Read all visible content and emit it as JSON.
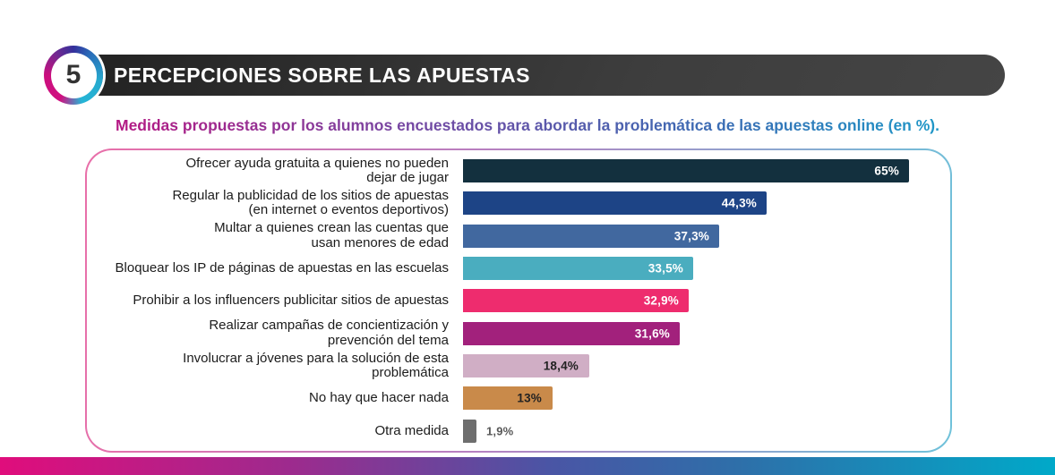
{
  "header": {
    "badge_number": "5",
    "title": "PERCEPCIONES SOBRE LAS APUESTAS",
    "bar_colors": [
      "#222222",
      "#454545"
    ],
    "badge_ring_colors": [
      "#34309b",
      "#27a9ce",
      "#d01080",
      "#6d2a92"
    ]
  },
  "chart_data": {
    "type": "bar",
    "orientation": "horizontal",
    "title": "Medidas propuestas por los alumnos encuestados para abordar la problemática de las apuestas online (en %).",
    "title_gradient_colors": [
      "#bb1380",
      "#7747a2",
      "#3a6cb4",
      "#16a3cd"
    ],
    "unit": "%",
    "xlim": [
      0,
      65
    ],
    "grid": false,
    "legend": false,
    "categories": [
      "Ofrecer ayuda gratuita a quienes no pueden dejar de jugar",
      "Regular la publicidad de los sitios de apuestas (en internet o eventos deportivos)",
      "Multar a quienes crean las cuentas que usan menores de edad",
      "Bloquear los IP de páginas de apuestas en las escuelas",
      "Prohibir a los influencers publicitar sitios de apuestas",
      "Realizar campañas de concientización y prevención del tema",
      "Involucrar a jóvenes para la solución de esta problemática",
      "No hay que hacer nada",
      "Otra medida"
    ],
    "label_lines": [
      [
        "Ofrecer ayuda gratuita a quienes no pueden",
        "dejar de jugar"
      ],
      [
        "Regular la publicidad de los sitios de apuestas",
        "(en internet o eventos deportivos)"
      ],
      [
        "Multar a quienes crean las cuentas que",
        "usan menores de edad"
      ],
      [
        "Bloquear los IP de páginas de apuestas en las escuelas"
      ],
      [
        "Prohibir a los influencers publicitar sitios de apuestas"
      ],
      [
        "Realizar campañas de concientización y",
        "prevención del tema"
      ],
      [
        "Involucrar a jóvenes para la solución de esta problemática"
      ],
      [
        "No hay que hacer nada"
      ],
      [
        "Otra medida"
      ]
    ],
    "values": [
      65,
      44.3,
      37.3,
      33.5,
      32.9,
      31.6,
      18.4,
      13,
      1.9
    ],
    "value_labels": [
      "65%",
      "44,3%",
      "37,3%",
      "33,5%",
      "32,9%",
      "31,6%",
      "18,4%",
      "13%",
      "1,9%"
    ],
    "bar_colors": [
      "#13303e",
      "#1d4486",
      "#41689f",
      "#4aadbf",
      "#ee2c6e",
      "#a2217c",
      "#d0aec5",
      "#c98a4a",
      "#6e6e6e"
    ],
    "value_label_styles": [
      "inside-light",
      "inside-light",
      "inside-light",
      "inside-light",
      "inside-light",
      "inside-light",
      "inside-dark",
      "inside-dark",
      "outside"
    ]
  },
  "panel": {
    "border_gradient_colors": [
      "#e96fa9",
      "#6fc2da"
    ]
  },
  "footer": {
    "gradient_colors": [
      "#e00d7c",
      "#9c2b8e",
      "#2e6fa9",
      "#00a9c9"
    ]
  }
}
